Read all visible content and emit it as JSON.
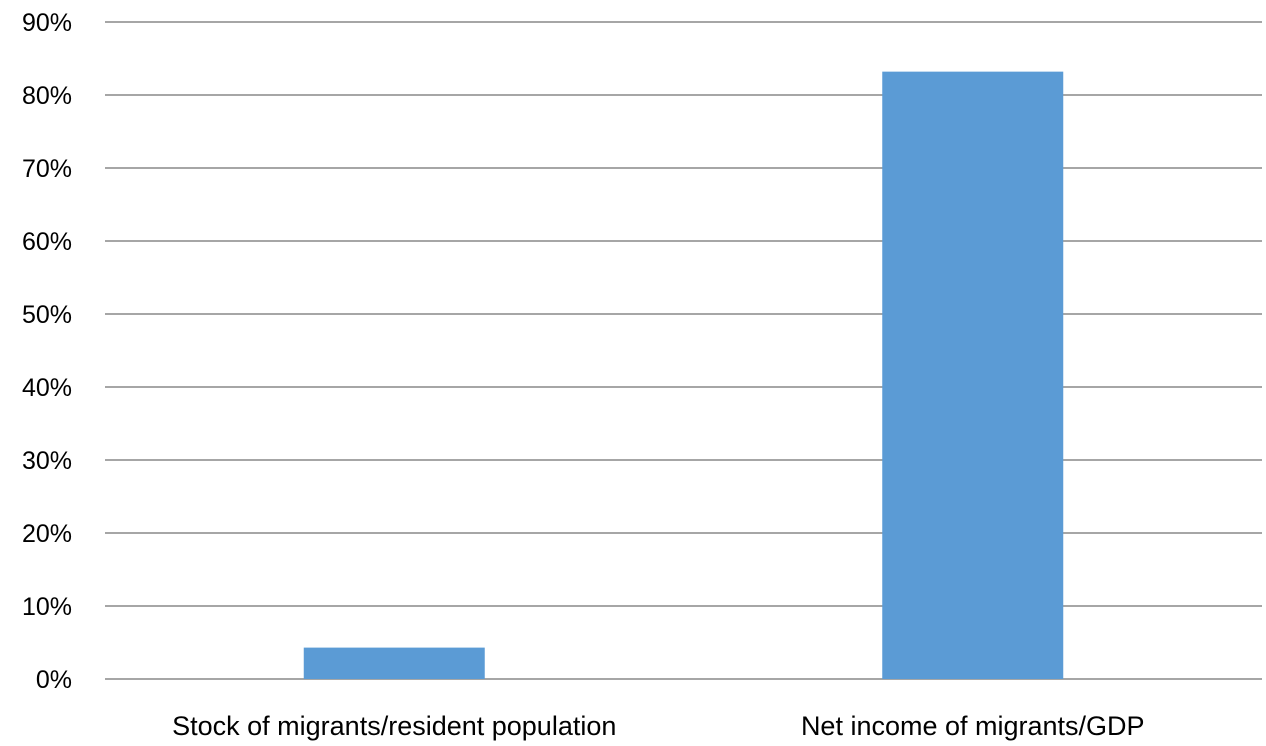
{
  "chart_data": {
    "type": "bar",
    "title": "",
    "xlabel": "",
    "ylabel": "",
    "categories": [
      "Stock of migrants/resident population",
      "Net income of migrants/GDP"
    ],
    "values": [
      4.3,
      83.2
    ],
    "ylim": [
      0,
      90
    ],
    "yticks": [
      0,
      10,
      20,
      30,
      40,
      50,
      60,
      70,
      80,
      90
    ],
    "ytick_labels": [
      "0%",
      "10%",
      "20%",
      "30%",
      "40%",
      "50%",
      "60%",
      "70%",
      "80%",
      "90%"
    ],
    "grid": true,
    "legend": "none",
    "bar_color": "#5b9bd5",
    "grid_color": "#a6a6a6"
  }
}
